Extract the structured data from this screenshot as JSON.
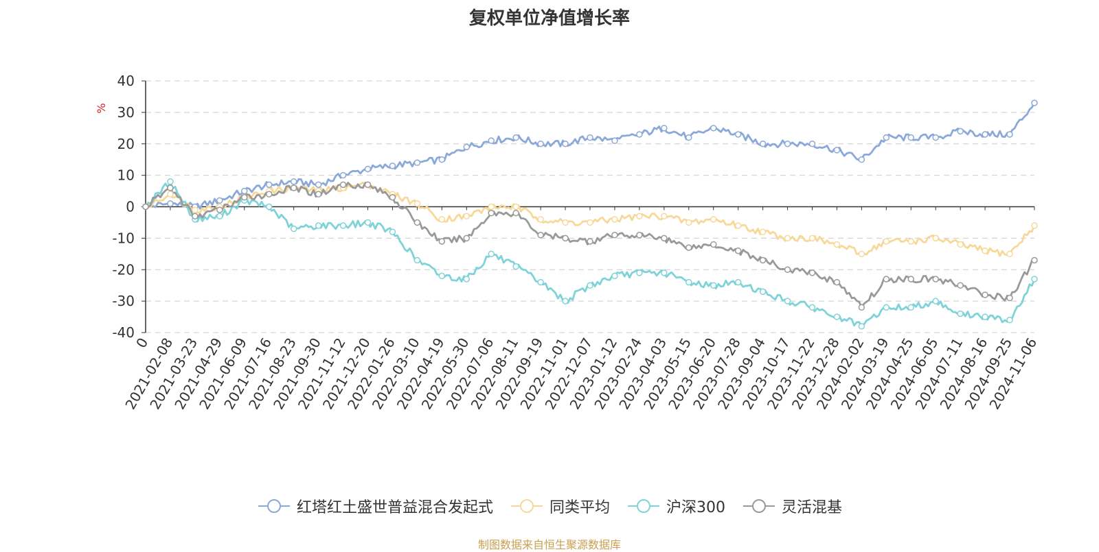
{
  "chart_data": {
    "type": "line",
    "title": "复权单位净值增长率",
    "ylabel": "%",
    "ylim": [
      -40,
      40
    ],
    "yticks": [
      40,
      30,
      20,
      10,
      0,
      -10,
      -20,
      -30,
      -40
    ],
    "grid": true,
    "legend_position": "bottom",
    "x_labels": [
      "0",
      "2021-02-08",
      "2021-03-23",
      "2021-04-29",
      "2021-06-09",
      "2021-07-16",
      "2021-08-23",
      "2021-09-30",
      "2021-11-12",
      "2021-12-20",
      "2022-01-26",
      "2022-03-10",
      "2022-04-19",
      "2022-05-30",
      "2022-07-06",
      "2022-08-11",
      "2022-09-19",
      "2022-11-01",
      "2022-12-07",
      "2023-01-12",
      "2023-02-24",
      "2023-04-03",
      "2023-05-15",
      "2023-06-20",
      "2023-07-28",
      "2023-09-04",
      "2023-10-17",
      "2023-11-22",
      "2023-12-28",
      "2024-02-02",
      "2024-03-19",
      "2024-04-25",
      "2024-06-05",
      "2024-07-11",
      "2024-08-16",
      "2024-09-25",
      "2024-11-06"
    ],
    "series": [
      {
        "name": "红塔红土盛世普益混合发起式",
        "color": "#8aa8d8",
        "values": [
          0,
          1,
          0,
          2,
          5,
          7,
          8,
          7,
          10,
          12,
          13,
          14,
          15,
          19,
          21,
          22,
          20,
          20,
          22,
          21,
          23,
          25,
          22,
          25,
          23,
          20,
          20,
          20,
          18,
          15,
          22,
          22,
          22,
          24,
          23,
          23,
          33
        ]
      },
      {
        "name": "同类平均",
        "color": "#f8d898",
        "values": [
          0,
          4,
          -1,
          0,
          3,
          5,
          6,
          5,
          6,
          7,
          4,
          1,
          -4,
          -3,
          0,
          0,
          -4,
          -5,
          -5,
          -4,
          -3,
          -3,
          -5,
          -4,
          -6,
          -8,
          -10,
          -10,
          -12,
          -15,
          -11,
          -11,
          -10,
          -12,
          -14,
          -15,
          -6
        ]
      },
      {
        "name": "沪深300",
        "color": "#7ed3d8",
        "values": [
          0,
          8,
          -4,
          -3,
          2,
          0,
          -7,
          -6,
          -6,
          -5,
          -8,
          -17,
          -22,
          -23,
          -15,
          -19,
          -24,
          -30,
          -25,
          -22,
          -21,
          -21,
          -24,
          -25,
          -24,
          -27,
          -30,
          -32,
          -35,
          -38,
          -32,
          -32,
          -30,
          -34,
          -35,
          -36,
          -23
        ]
      },
      {
        "name": "灵活混基",
        "color": "#999999",
        "values": [
          0,
          6,
          -3,
          -1,
          3,
          4,
          6,
          4,
          7,
          7,
          3,
          -5,
          -11,
          -10,
          -2,
          -2,
          -9,
          -10,
          -11,
          -9,
          -9,
          -10,
          -13,
          -12,
          -14,
          -17,
          -20,
          -21,
          -24,
          -32,
          -23,
          -23,
          -23,
          -25,
          -28,
          -29,
          -17
        ]
      }
    ]
  },
  "source_text": "制图数据来自恒生聚源数据库"
}
